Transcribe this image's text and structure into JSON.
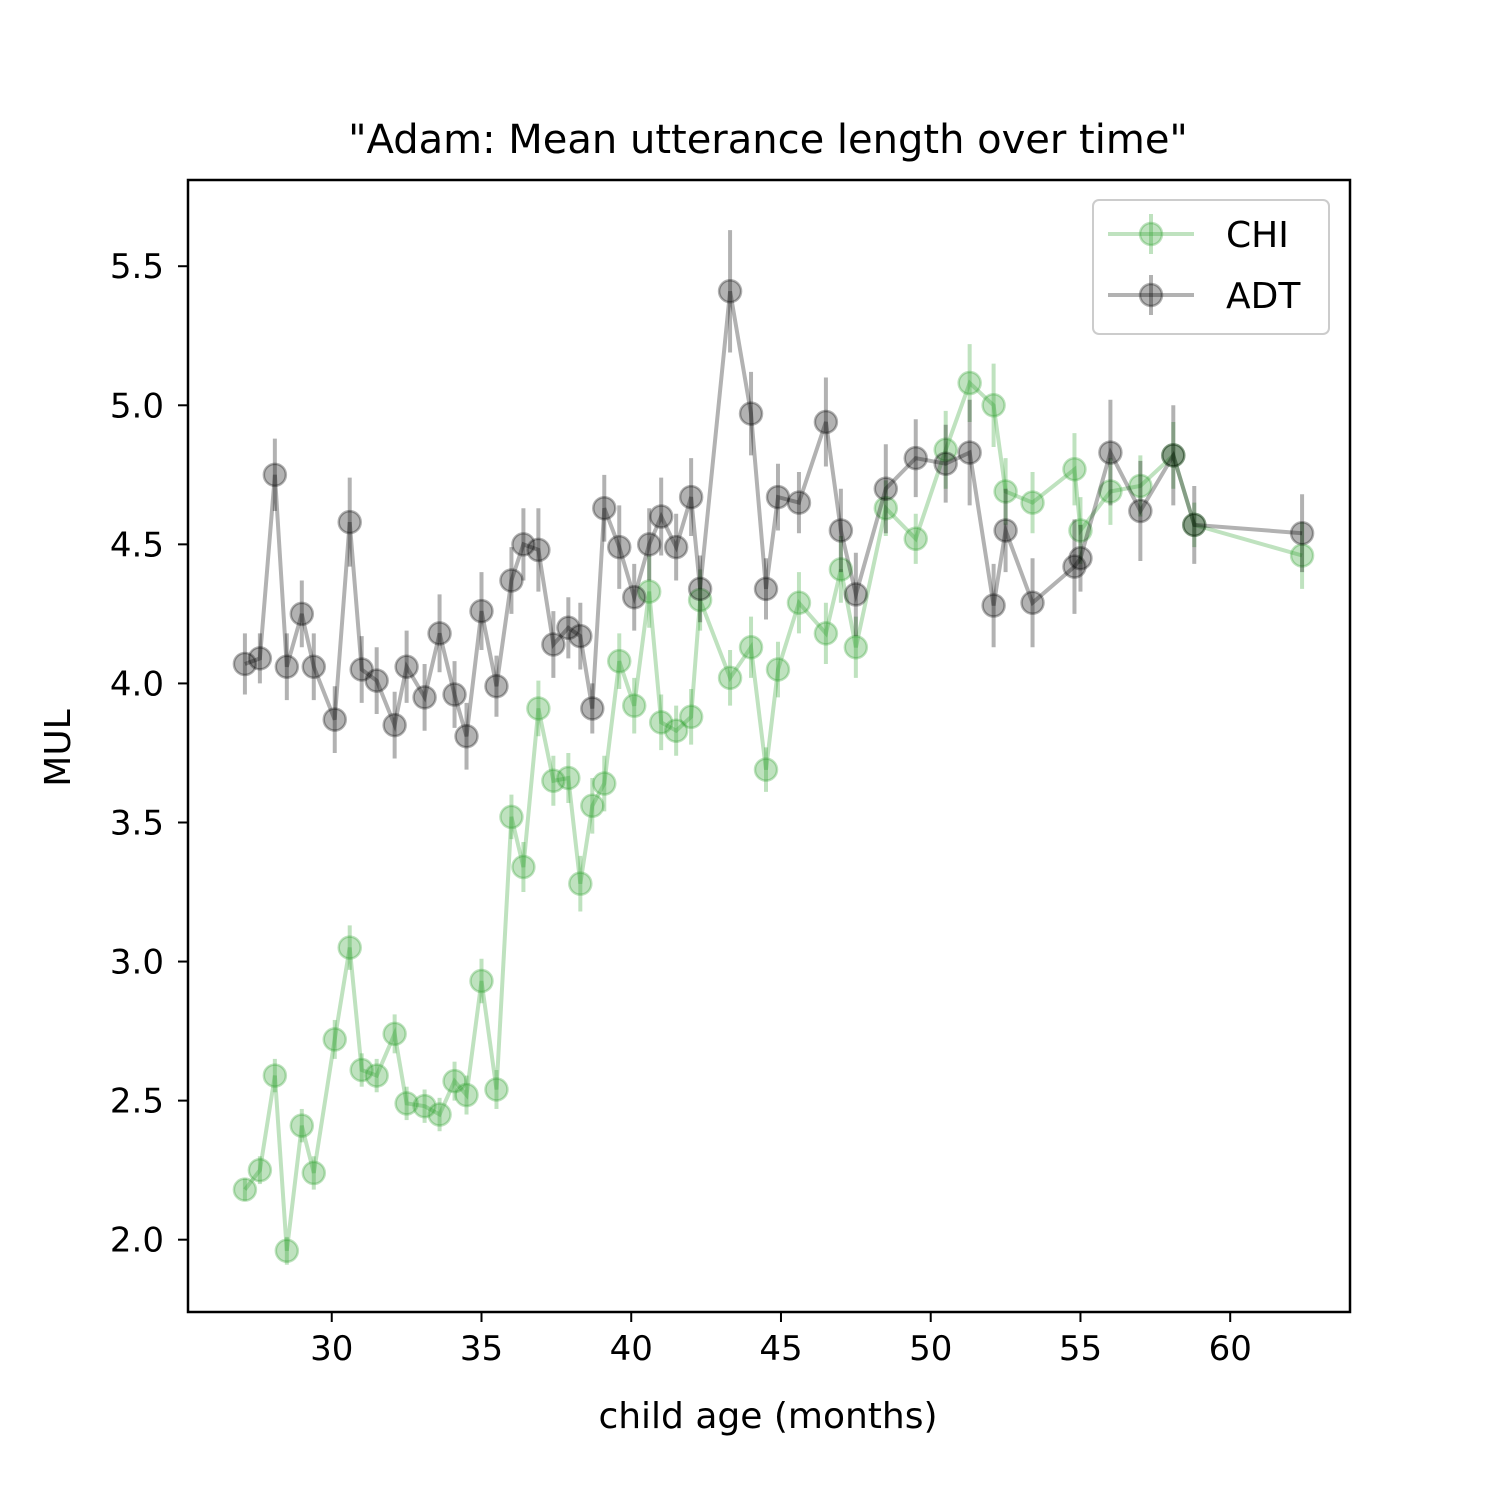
{
  "chart_data": {
    "type": "line",
    "title": "\"Adam: Mean utterance length over time\"",
    "xlabel": "child age (months)",
    "ylabel": "MUL",
    "xlim": [
      25.2,
      64.0
    ],
    "ylim": [
      1.74,
      5.81
    ],
    "xticks": [
      30,
      35,
      40,
      45,
      50,
      55,
      60
    ],
    "yticks": [
      2.0,
      2.5,
      3.0,
      3.5,
      4.0,
      4.5,
      5.0,
      5.5
    ],
    "grid": false,
    "legend_position": "top-right",
    "series": [
      {
        "name": "CHI",
        "color": "#2ca02c",
        "x": [
          27.1,
          27.6,
          28.1,
          28.5,
          29.0,
          29.4,
          30.1,
          30.6,
          31.0,
          31.5,
          32.1,
          32.5,
          33.1,
          33.6,
          34.1,
          34.5,
          35.0,
          35.5,
          36.0,
          36.4,
          36.9,
          37.4,
          37.9,
          38.3,
          38.7,
          39.1,
          39.6,
          40.1,
          40.6,
          41.0,
          41.5,
          42.0,
          42.3,
          43.3,
          44.0,
          44.5,
          44.9,
          45.6,
          46.5,
          47.0,
          47.5,
          48.5,
          49.5,
          50.5,
          51.3,
          52.1,
          52.5,
          53.4,
          54.8,
          55.0,
          56.0,
          57.0,
          58.1,
          58.8,
          62.4
        ],
        "y": [
          2.18,
          2.25,
          2.59,
          1.96,
          2.41,
          2.24,
          2.72,
          3.05,
          2.61,
          2.59,
          2.74,
          2.49,
          2.48,
          2.45,
          2.57,
          2.52,
          2.93,
          2.54,
          3.52,
          3.34,
          3.91,
          3.65,
          3.66,
          3.28,
          3.56,
          3.64,
          4.08,
          3.92,
          4.33,
          3.86,
          3.83,
          3.88,
          4.3,
          4.02,
          4.13,
          3.69,
          4.05,
          4.29,
          4.18,
          4.41,
          4.13,
          4.63,
          4.52,
          4.84,
          5.08,
          5.0,
          4.69,
          4.65,
          4.77,
          4.55,
          4.69,
          4.71,
          4.82,
          4.57,
          4.46
        ],
        "yerr": [
          0.04,
          0.05,
          0.06,
          0.05,
          0.06,
          0.06,
          0.07,
          0.08,
          0.06,
          0.06,
          0.07,
          0.06,
          0.06,
          0.06,
          0.07,
          0.07,
          0.08,
          0.07,
          0.08,
          0.09,
          0.1,
          0.09,
          0.09,
          0.1,
          0.1,
          0.1,
          0.1,
          0.1,
          0.13,
          0.1,
          0.09,
          0.1,
          0.11,
          0.1,
          0.11,
          0.08,
          0.1,
          0.11,
          0.11,
          0.12,
          0.11,
          0.1,
          0.09,
          0.14,
          0.14,
          0.15,
          0.12,
          0.11,
          0.13,
          0.12,
          0.12,
          0.11,
          0.12,
          0.08,
          0.12
        ]
      },
      {
        "name": "ADT",
        "color": "#000000",
        "x": [
          27.1,
          27.6,
          28.1,
          28.5,
          29.0,
          29.4,
          30.1,
          30.6,
          31.0,
          31.5,
          32.1,
          32.5,
          33.1,
          33.6,
          34.1,
          34.5,
          35.0,
          35.5,
          36.0,
          36.4,
          36.9,
          37.4,
          37.9,
          38.3,
          38.7,
          39.1,
          39.6,
          40.1,
          40.6,
          41.0,
          41.5,
          42.0,
          42.3,
          43.3,
          44.0,
          44.5,
          44.9,
          45.6,
          46.5,
          47.0,
          47.5,
          48.5,
          49.5,
          50.5,
          51.3,
          52.1,
          52.5,
          53.4,
          54.8,
          55.0,
          56.0,
          57.0,
          58.1,
          58.8,
          62.4
        ],
        "y": [
          4.07,
          4.09,
          4.75,
          4.06,
          4.25,
          4.06,
          3.87,
          4.58,
          4.05,
          4.01,
          3.85,
          4.06,
          3.95,
          4.18,
          3.96,
          3.81,
          4.26,
          3.99,
          4.37,
          4.5,
          4.48,
          4.14,
          4.2,
          4.17,
          3.91,
          4.63,
          4.49,
          4.31,
          4.5,
          4.6,
          4.49,
          4.67,
          4.34,
          5.41,
          4.97,
          4.34,
          4.67,
          4.65,
          4.94,
          4.55,
          4.32,
          4.7,
          4.81,
          4.79,
          4.83,
          4.28,
          4.55,
          4.29,
          4.42,
          4.45,
          4.83,
          4.62,
          4.82,
          4.57,
          4.54
        ]
      }
    ],
    "adt_yerr": [
      0.11,
      0.09,
      0.13,
      0.12,
      0.12,
      0.12,
      0.12,
      0.16,
      0.12,
      0.12,
      0.12,
      0.13,
      0.12,
      0.14,
      0.12,
      0.12,
      0.14,
      0.11,
      0.12,
      0.13,
      0.15,
      0.12,
      0.11,
      0.12,
      0.09,
      0.12,
      0.15,
      0.12,
      0.13,
      0.14,
      0.12,
      0.14,
      0.12,
      0.22,
      0.15,
      0.11,
      0.12,
      0.11,
      0.16,
      0.15,
      0.15,
      0.16,
      0.14,
      0.14,
      0.19,
      0.15,
      0.15,
      0.16,
      0.17,
      0.12,
      0.19,
      0.18,
      0.18,
      0.14,
      0.14
    ]
  }
}
